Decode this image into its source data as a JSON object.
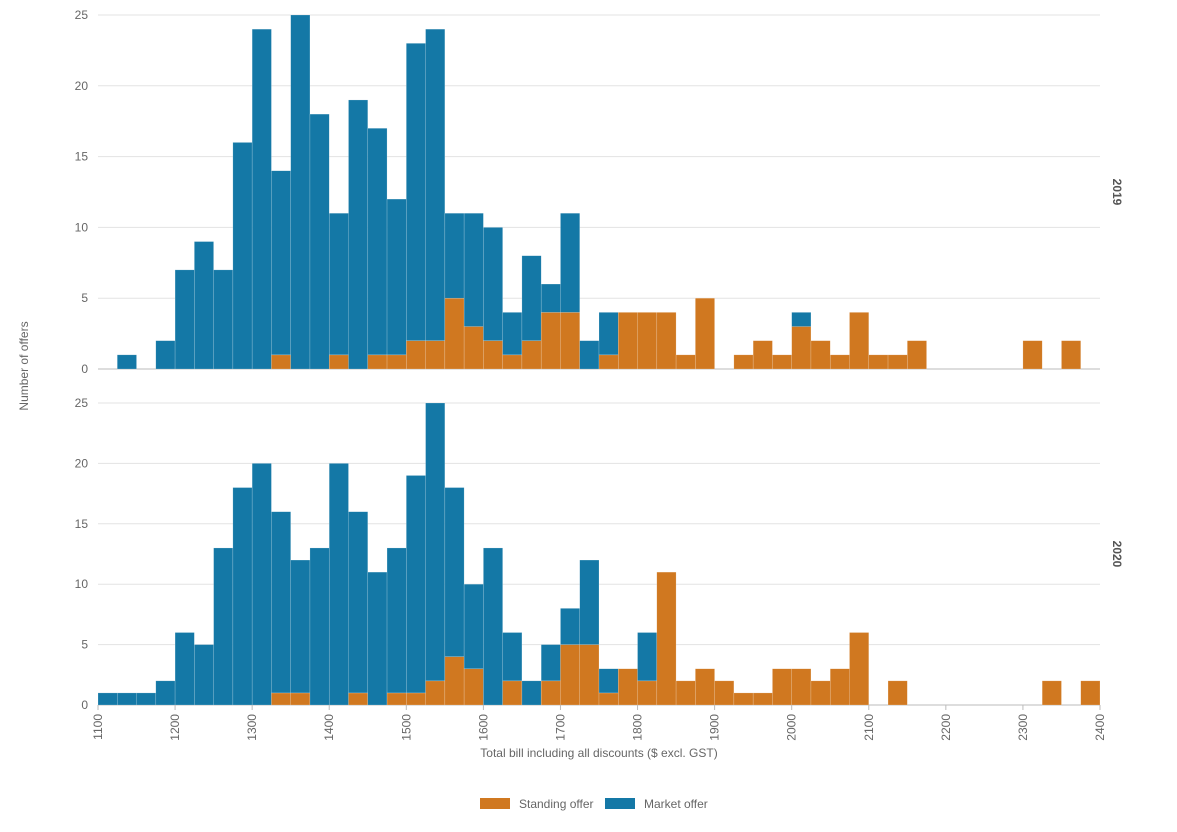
{
  "chart_data": {
    "type": "bar",
    "stacked": true,
    "xlabel": "Total bill including all discounts ($ excl. GST)",
    "ylabel": "Number of offers",
    "xlim": [
      1100,
      2400
    ],
    "x_ticks": [
      "1100",
      "1200",
      "1300",
      "1400",
      "1500",
      "1600",
      "1700",
      "1800",
      "1900",
      "2000",
      "2100",
      "2200",
      "2300",
      "2400"
    ],
    "ylim": [
      0,
      25
    ],
    "y_ticks": [
      "0",
      "5",
      "10",
      "15",
      "20",
      "25"
    ],
    "bin_width": 25,
    "bin_starts": [
      1100,
      1125,
      1150,
      1175,
      1200,
      1225,
      1250,
      1275,
      1300,
      1325,
      1350,
      1375,
      1400,
      1425,
      1450,
      1475,
      1500,
      1525,
      1550,
      1575,
      1600,
      1625,
      1650,
      1675,
      1700,
      1725,
      1750,
      1775,
      1800,
      1825,
      1850,
      1875,
      1900,
      1925,
      1950,
      1975,
      2000,
      2025,
      2050,
      2075,
      2100,
      2125,
      2150,
      2175,
      2200,
      2225,
      2250,
      2275,
      2300,
      2325,
      2350,
      2375
    ],
    "series_names": [
      "Standing offer",
      "Market offer"
    ],
    "colors": {
      "Standing offer": "#d07820",
      "Market offer": "#1478a6"
    },
    "legend_position": "bottom",
    "grid": true,
    "panels": [
      {
        "label": "2019",
        "series": [
          {
            "name": "Standing offer",
            "values": [
              0,
              0,
              0,
              0,
              0,
              0,
              0,
              0,
              0,
              1,
              0,
              0,
              1,
              0,
              1,
              1,
              2,
              2,
              5,
              3,
              2,
              1,
              2,
              4,
              4,
              0,
              1,
              4,
              4,
              4,
              1,
              5,
              0,
              1,
              2,
              1,
              3,
              2,
              1,
              4,
              1,
              1,
              2,
              0,
              0,
              0,
              0,
              0,
              2,
              0,
              2,
              0
            ]
          },
          {
            "name": "Market offer",
            "values": [
              0,
              1,
              0,
              2,
              7,
              9,
              7,
              16,
              24,
              13,
              25,
              18,
              10,
              19,
              16,
              11,
              21,
              22,
              6,
              8,
              8,
              3,
              6,
              2,
              7,
              2,
              3,
              0,
              0,
              0,
              0,
              0,
              0,
              0,
              0,
              0,
              1,
              0,
              0,
              0,
              0,
              0,
              0,
              0,
              0,
              0,
              0,
              0,
              0,
              0,
              0,
              0
            ]
          }
        ]
      },
      {
        "label": "2020",
        "series": [
          {
            "name": "Standing offer",
            "values": [
              0,
              0,
              0,
              0,
              0,
              0,
              0,
              0,
              0,
              1,
              1,
              0,
              0,
              1,
              0,
              1,
              1,
              2,
              4,
              3,
              0,
              2,
              0,
              2,
              5,
              5,
              1,
              3,
              2,
              11,
              2,
              3,
              2,
              1,
              1,
              3,
              3,
              2,
              3,
              6,
              0,
              2,
              0,
              0,
              0,
              0,
              0,
              0,
              0,
              2,
              0,
              2
            ]
          },
          {
            "name": "Market offer",
            "values": [
              1,
              1,
              1,
              2,
              6,
              5,
              13,
              18,
              20,
              15,
              11,
              13,
              20,
              15,
              11,
              12,
              18,
              23,
              14,
              7,
              13,
              4,
              2,
              3,
              3,
              7,
              2,
              0,
              4,
              0,
              0,
              0,
              0,
              0,
              0,
              0,
              0,
              0,
              0,
              0,
              0,
              0,
              0,
              0,
              0,
              0,
              0,
              0,
              0,
              0,
              0,
              0
            ]
          }
        ]
      }
    ]
  }
}
